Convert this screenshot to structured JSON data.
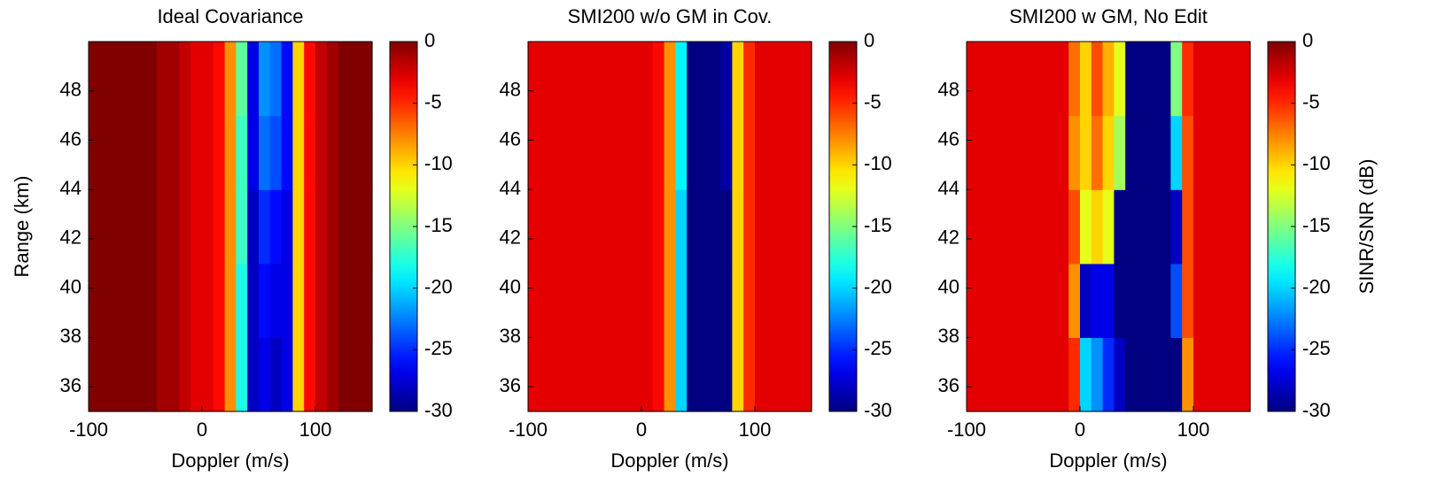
{
  "chart_data": [
    {
      "type": "heatmap",
      "title": "Ideal Covariance",
      "x_label": "Doppler (m/s)",
      "y_label": "Range (km)",
      "colormap": "jet",
      "xlim": [
        -100,
        150
      ],
      "xticks": [
        -100,
        0,
        100
      ],
      "ylim": [
        35,
        50
      ],
      "yticks": [
        36,
        38,
        40,
        42,
        44,
        46,
        48
      ],
      "xbins": [
        -100,
        -90,
        -80,
        -70,
        -60,
        -50,
        -40,
        -30,
        -20,
        -10,
        0,
        10,
        20,
        30,
        40,
        50,
        60,
        70,
        80,
        90,
        100,
        110,
        120,
        130,
        140,
        150
      ],
      "ybins": [
        35,
        38,
        41,
        44,
        47,
        50
      ],
      "clim": [
        -30,
        0
      ],
      "cticks": [
        0,
        -5,
        -10,
        -15,
        -20,
        -25,
        -30
      ],
      "z": [
        [
          0,
          0,
          0,
          0,
          0,
          0,
          -1,
          -1,
          -2,
          -3,
          -3,
          -4,
          -8,
          -18,
          -28,
          -27,
          -28,
          -27,
          -10,
          -4,
          -2,
          -1,
          0,
          0,
          0
        ],
        [
          0,
          0,
          0,
          0,
          0,
          0,
          -1,
          -1,
          -2,
          -3,
          -3,
          -4,
          -8,
          -18,
          -28,
          -26,
          -27,
          -27,
          -10,
          -4,
          -2,
          -1,
          0,
          0,
          0
        ],
        [
          0,
          0,
          0,
          0,
          0,
          0,
          -1,
          -1,
          -2,
          -3,
          -3,
          -4,
          -8,
          -17,
          -28,
          -25,
          -26,
          -27,
          -10,
          -4,
          -2,
          -1,
          0,
          0,
          0
        ],
        [
          0,
          0,
          0,
          0,
          0,
          0,
          -1,
          -1,
          -2,
          -3,
          -3,
          -4,
          -8,
          -17,
          -27,
          -23,
          -24,
          -26,
          -10,
          -4,
          -2,
          -1,
          0,
          0,
          0
        ],
        [
          0,
          0,
          0,
          0,
          0,
          0,
          -1,
          -1,
          -2,
          -3,
          -3,
          -4,
          -8,
          -16,
          -27,
          -22,
          -23,
          -26,
          -10,
          -4,
          -2,
          -1,
          0,
          0,
          0
        ]
      ]
    },
    {
      "type": "heatmap",
      "title": "SMI200 w/o GM in Cov.",
      "x_label": "Doppler (m/s)",
      "colormap": "jet",
      "xlim": [
        -100,
        150
      ],
      "xticks": [
        -100,
        0,
        100
      ],
      "ylim": [
        35,
        50
      ],
      "yticks": [
        36,
        38,
        40,
        42,
        44,
        46,
        48
      ],
      "xbins": [
        -100,
        -90,
        -80,
        -70,
        -60,
        -50,
        -40,
        -30,
        -20,
        -10,
        0,
        10,
        20,
        30,
        40,
        50,
        60,
        70,
        80,
        90,
        100,
        110,
        120,
        130,
        140,
        150
      ],
      "ybins": [
        35,
        38,
        41,
        44,
        47,
        50
      ],
      "clim": [
        -30,
        0
      ],
      "cticks": [
        0,
        -5,
        -10,
        -15,
        -20,
        -25,
        -30
      ],
      "z": [
        [
          -3,
          -3,
          -3,
          -3,
          -3,
          -3,
          -3,
          -3,
          -3,
          -3,
          -3,
          -4,
          -8,
          -20,
          -30,
          -30,
          -30,
          -30,
          -10,
          -5,
          -3,
          -3,
          -3,
          -3,
          -3
        ],
        [
          -3,
          -3,
          -3,
          -3,
          -3,
          -3,
          -3,
          -3,
          -3,
          -3,
          -3,
          -4,
          -8,
          -20,
          -30,
          -30,
          -30,
          -30,
          -10,
          -5,
          -3,
          -3,
          -3,
          -3,
          -3
        ],
        [
          -3,
          -3,
          -3,
          -3,
          -3,
          -3,
          -3,
          -3,
          -3,
          -3,
          -3,
          -4,
          -8,
          -20,
          -30,
          -30,
          -30,
          -30,
          -10,
          -5,
          -3,
          -3,
          -3,
          -3,
          -3
        ],
        [
          -3,
          -3,
          -3,
          -3,
          -3,
          -3,
          -3,
          -3,
          -3,
          -3,
          -3,
          -4,
          -8,
          -19,
          -30,
          -30,
          -30,
          -29,
          -10,
          -5,
          -3,
          -3,
          -3,
          -3,
          -3
        ],
        [
          -3,
          -3,
          -3,
          -3,
          -3,
          -3,
          -3,
          -3,
          -3,
          -3,
          -3,
          -4,
          -8,
          -19,
          -30,
          -30,
          -30,
          -29,
          -10,
          -5,
          -3,
          -3,
          -3,
          -3,
          -3
        ]
      ]
    },
    {
      "type": "heatmap",
      "title": "SMI200 w GM, No Edit",
      "x_label": "Doppler (m/s)",
      "colormap": "jet",
      "xlim": [
        -100,
        150
      ],
      "xticks": [
        -100,
        0,
        100
      ],
      "ylim": [
        35,
        50
      ],
      "yticks": [
        36,
        38,
        40,
        42,
        44,
        46,
        48
      ],
      "xbins": [
        -100,
        -90,
        -80,
        -70,
        -60,
        -50,
        -40,
        -30,
        -20,
        -10,
        0,
        10,
        20,
        30,
        40,
        50,
        60,
        70,
        80,
        90,
        100,
        110,
        120,
        130,
        140,
        150
      ],
      "ybins": [
        35,
        38,
        41,
        44,
        47,
        50
      ],
      "clim": [
        -30,
        0
      ],
      "cticks": [
        0,
        -5,
        -10,
        -15,
        -20,
        -25,
        -30
      ],
      "colorbar_label": "SINR/SNR (dB)",
      "z": [
        [
          -3,
          -3,
          -3,
          -3,
          -3,
          -3,
          -3,
          -3,
          -3,
          -5,
          -20,
          -22,
          -25,
          -28,
          -30,
          -30,
          -30,
          -30,
          -30,
          -8,
          -3,
          -3,
          -3,
          -3,
          -3
        ],
        [
          -3,
          -3,
          -3,
          -3,
          -3,
          -3,
          -3,
          -3,
          -3,
          -8,
          -28,
          -27,
          -27,
          -30,
          -30,
          -30,
          -30,
          -30,
          -24,
          -6,
          -3,
          -3,
          -3,
          -3,
          -3
        ],
        [
          -3,
          -3,
          -3,
          -3,
          -3,
          -3,
          -3,
          -3,
          -3,
          -6,
          -12,
          -10,
          -12,
          -30,
          -30,
          -30,
          -30,
          -30,
          -28,
          -6,
          -3,
          -3,
          -3,
          -3,
          -3
        ],
        [
          -3,
          -3,
          -3,
          -3,
          -3,
          -3,
          -3,
          -3,
          -3,
          -8,
          -10,
          -7,
          -10,
          -14,
          -30,
          -30,
          -30,
          -30,
          -20,
          -6,
          -3,
          -3,
          -3,
          -3,
          -3
        ],
        [
          -3,
          -3,
          -3,
          -3,
          -3,
          -3,
          -3,
          -3,
          -3,
          -7,
          -10,
          -6,
          -9,
          -12,
          -30,
          -30,
          -30,
          -30,
          -15,
          -5,
          -3,
          -3,
          -3,
          -3,
          -3
        ]
      ]
    }
  ]
}
